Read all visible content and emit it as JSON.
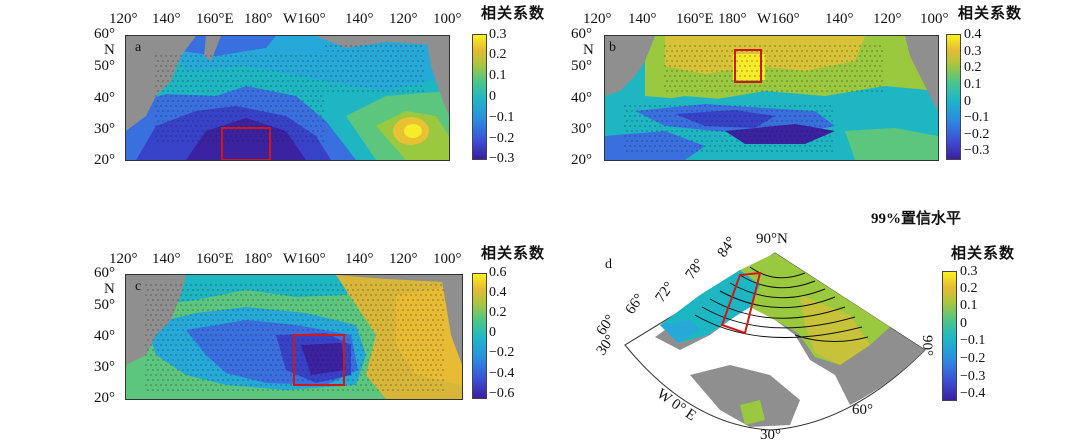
{
  "panels": {
    "a": {
      "letter": "a",
      "lon_ticks": [
        "120°",
        "140°",
        "160°E",
        "180°",
        "W160°",
        "140°",
        "120°",
        "100°"
      ],
      "lat_ticks": [
        "60°",
        "N",
        "50°",
        "40°",
        "30°",
        "20°"
      ],
      "colorbar": {
        "title": "相关系数",
        "ticks": [
          "0.3",
          "0.2",
          "0.1",
          "0",
          "−0.1",
          "−0.2",
          "−0.3"
        ]
      }
    },
    "b": {
      "letter": "b",
      "lon_ticks": [
        "120°",
        "140°",
        "160°E",
        "180°",
        "W160°",
        "140°",
        "120°",
        "100°"
      ],
      "lat_ticks": [
        "60°",
        "N",
        "50°",
        "40°",
        "30°",
        "20°"
      ],
      "colorbar": {
        "title": "相关系数",
        "ticks": [
          "0.4",
          "0.3",
          "0.2",
          "0.1",
          "0",
          "−0.1",
          "−0.2",
          "−0.3"
        ]
      }
    },
    "c": {
      "letter": "c",
      "lon_ticks": [
        "120°",
        "140°",
        "160°E",
        "180°",
        "W160°",
        "140°",
        "120°",
        "100°"
      ],
      "lat_ticks": [
        "60°",
        "N",
        "50°",
        "40°",
        "30°",
        "20°"
      ],
      "colorbar": {
        "title": "相关系数",
        "ticks": [
          "0.6",
          "0.4",
          "0.2",
          "0",
          "−0.2",
          "−0.4",
          "−0.6"
        ]
      }
    },
    "d": {
      "letter": "d",
      "significance_label": "99%置信水平",
      "lat_labels": [
        "90°N",
        "84°",
        "78°",
        "72°",
        "66°",
        "60°"
      ],
      "lon_labels": [
        "30°",
        "W 0° E",
        "30°",
        "60°",
        "90°"
      ],
      "colorbar": {
        "title": "相关系数",
        "ticks": [
          "0.3",
          "0.2",
          "0.1",
          "0",
          "−0.1",
          "−0.2",
          "−0.3",
          "−0.4"
        ]
      }
    }
  },
  "colors": {
    "land": "#8f8f8f",
    "box": "#d01818",
    "stipple": "#1a1a1a"
  }
}
